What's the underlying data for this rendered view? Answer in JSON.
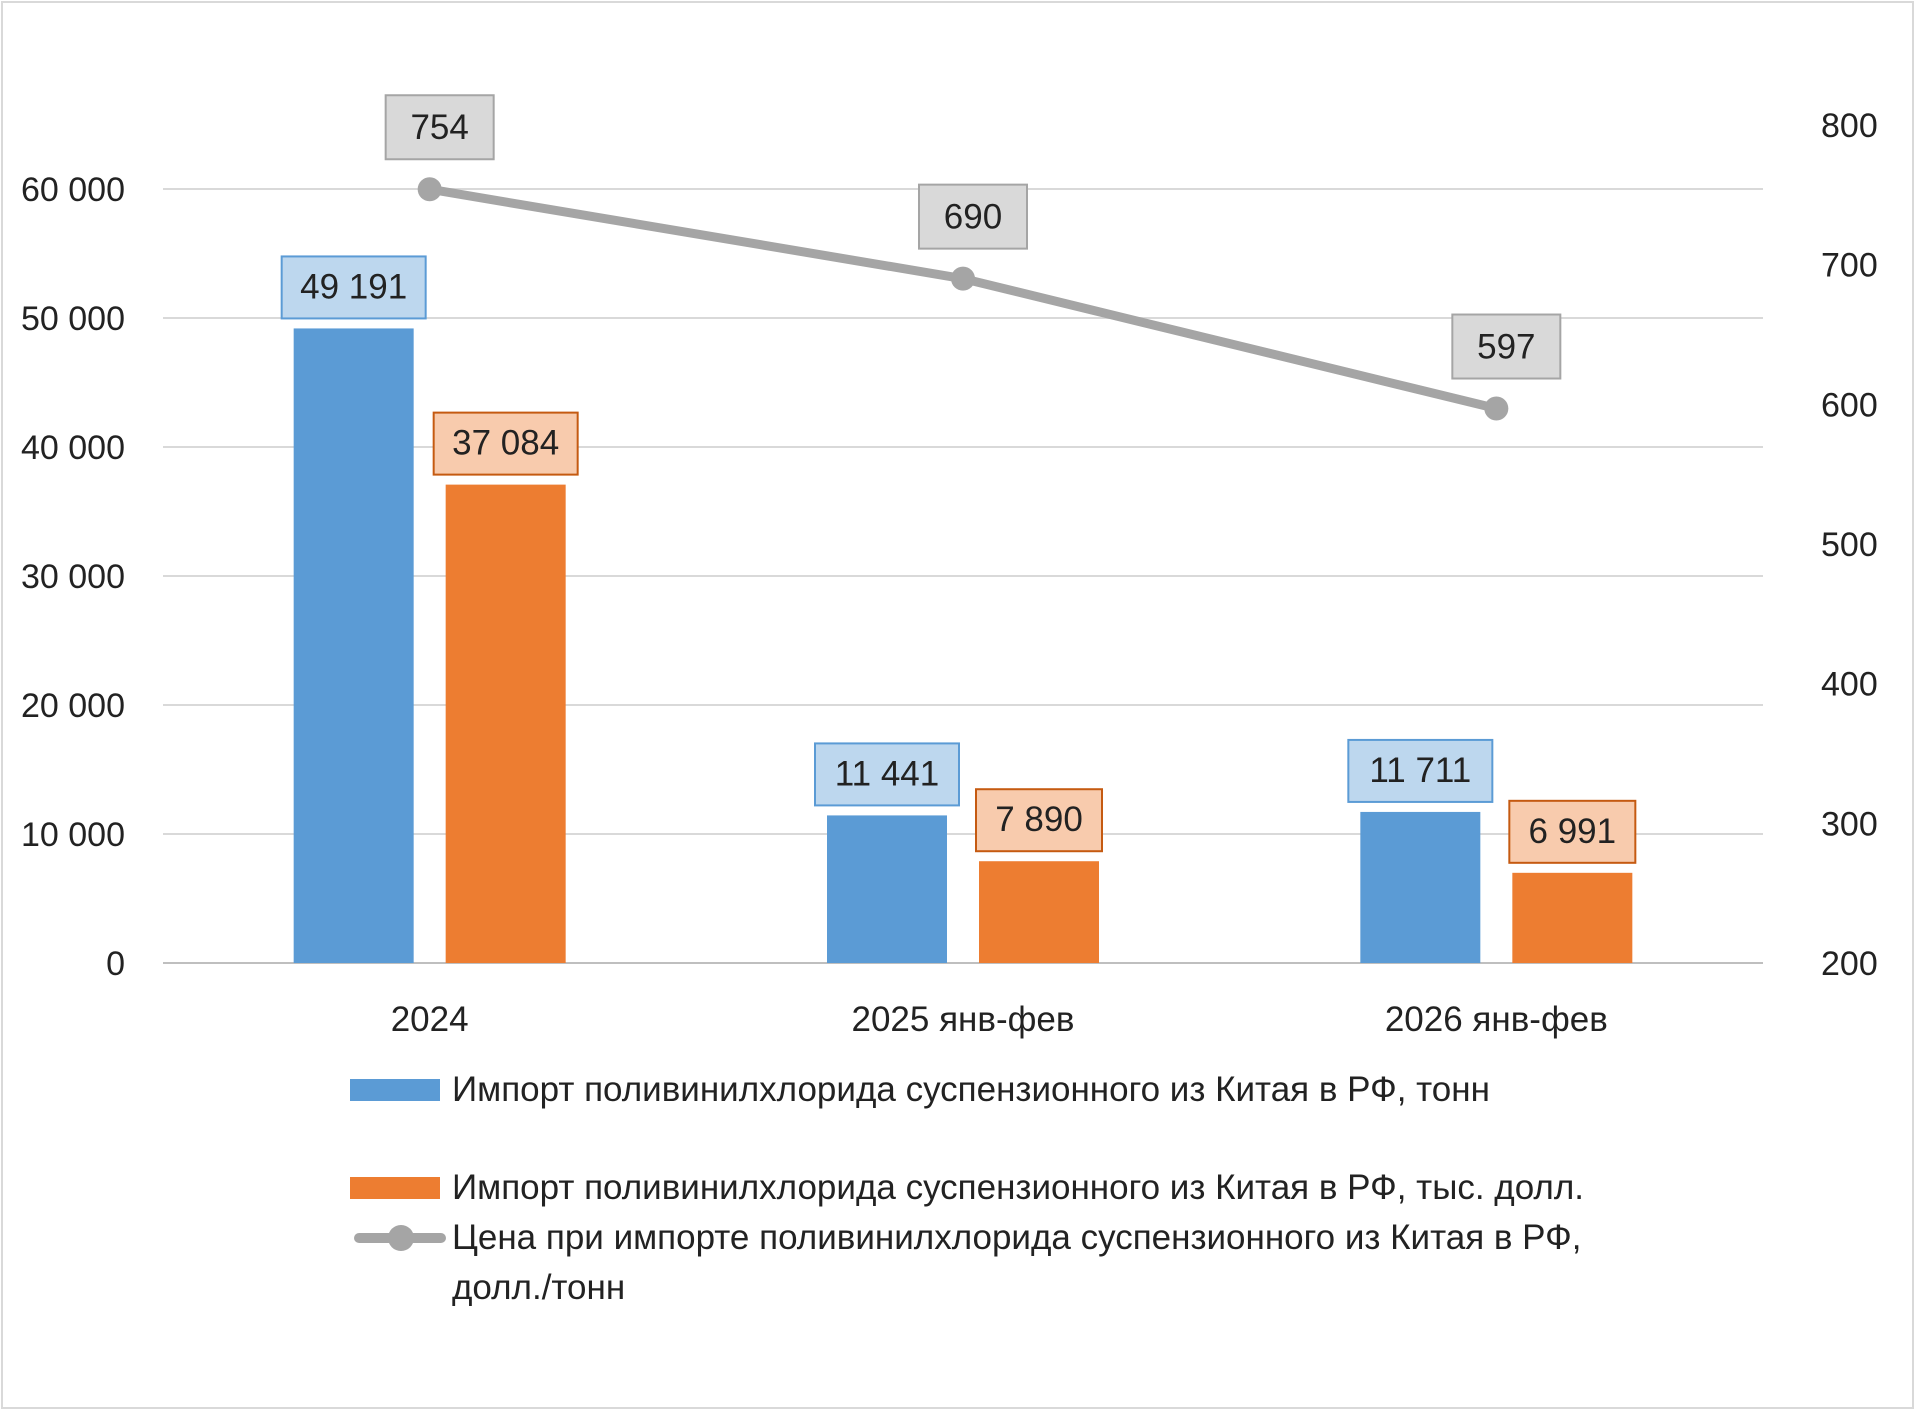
{
  "chart_data": {
    "type": "bar",
    "categories": [
      "2024",
      "2025 янв-фев",
      "2026 янв-фев"
    ],
    "series": [
      {
        "name": "Импорт поливинилхлорида суспензионного из Китая в РФ, тонн",
        "type": "bar",
        "axis": "left",
        "color": "#5b9bd5",
        "label_fill": "#bdd7ee",
        "values": [
          49191,
          11441,
          11711
        ],
        "labels": [
          "49 191",
          "11 441",
          "11 711"
        ]
      },
      {
        "name": "Импорт поливинилхлорида суспензионного из Китая в РФ, тыс. долл.",
        "type": "bar",
        "axis": "left",
        "color": "#ed7d31",
        "label_fill": "#f8cbad",
        "values": [
          37084,
          7890,
          6991
        ],
        "labels": [
          "37 084",
          "7 890",
          "6 991"
        ]
      },
      {
        "name": "Цена при импорте поливинилхлорида суспензионного из Китая в РФ, долл./тонн",
        "type": "line",
        "axis": "right",
        "color": "#a5a5a5",
        "label_fill": "#d9d9d9",
        "values": [
          754,
          690,
          597
        ],
        "labels": [
          "754",
          "690",
          "597"
        ]
      }
    ],
    "left_axis": {
      "range": [
        0,
        65000
      ],
      "ticks": [
        0,
        10000,
        20000,
        30000,
        40000,
        50000,
        60000
      ],
      "tick_labels": [
        "0",
        "10 000",
        "20 000",
        "30 000",
        "40 000",
        "50 000",
        "60 000"
      ]
    },
    "right_axis": {
      "range": [
        200,
        800
      ],
      "ticks": [
        200,
        300,
        400,
        500,
        600,
        700,
        800
      ],
      "tick_labels": [
        "200",
        "300",
        "400",
        "500",
        "600",
        "700",
        "800"
      ]
    },
    "grid": true,
    "legend_position": "bottom",
    "title": "",
    "xlabel": "",
    "ylabel": ""
  }
}
